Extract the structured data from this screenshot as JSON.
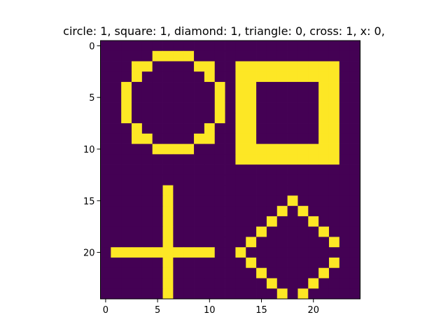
{
  "chart_data": {
    "type": "heatmap",
    "title": "circle: 1, square: 1, diamond: 1, triangle: 0, cross: 1, x: 0,",
    "xlabel": "",
    "ylabel": "",
    "grid": false,
    "xlim": [
      -0.5,
      24.5
    ],
    "ylim": [
      24.5,
      -0.5
    ],
    "x_ticks": [
      0,
      5,
      10,
      15,
      20
    ],
    "y_ticks": [
      0,
      5,
      10,
      15,
      20
    ],
    "x_tick_labels": [
      "0",
      "5",
      "10",
      "15",
      "20"
    ],
    "y_tick_labels": [
      "0",
      "5",
      "10",
      "15",
      "20"
    ],
    "colors": {
      "low": "#440154",
      "high": "#fde725"
    },
    "matrix": [
      [
        0,
        0,
        0,
        0,
        0,
        0,
        0,
        0,
        0,
        0,
        0,
        0,
        0,
        0,
        0,
        0,
        0,
        0,
        0,
        0,
        0,
        0,
        0,
        0,
        0
      ],
      [
        0,
        0,
        0,
        0,
        0,
        1,
        1,
        1,
        1,
        0,
        0,
        0,
        0,
        0,
        0,
        0,
        0,
        0,
        0,
        0,
        0,
        0,
        0,
        0,
        0
      ],
      [
        0,
        0,
        0,
        1,
        1,
        0,
        0,
        0,
        0,
        1,
        1,
        0,
        0,
        1,
        1,
        1,
        1,
        1,
        1,
        1,
        1,
        1,
        1,
        0,
        0
      ],
      [
        0,
        0,
        0,
        1,
        0,
        0,
        0,
        0,
        0,
        0,
        1,
        0,
        0,
        1,
        1,
        1,
        1,
        1,
        1,
        1,
        1,
        1,
        1,
        0,
        0
      ],
      [
        0,
        0,
        1,
        0,
        0,
        0,
        0,
        0,
        0,
        0,
        0,
        1,
        0,
        1,
        1,
        0,
        0,
        0,
        0,
        0,
        0,
        1,
        1,
        0,
        0
      ],
      [
        0,
        0,
        1,
        0,
        0,
        0,
        0,
        0,
        0,
        0,
        0,
        1,
        0,
        1,
        1,
        0,
        0,
        0,
        0,
        0,
        0,
        1,
        1,
        0,
        0
      ],
      [
        0,
        0,
        1,
        0,
        0,
        0,
        0,
        0,
        0,
        0,
        0,
        1,
        0,
        1,
        1,
        0,
        0,
        0,
        0,
        0,
        0,
        1,
        1,
        0,
        0
      ],
      [
        0,
        0,
        1,
        0,
        0,
        0,
        0,
        0,
        0,
        0,
        0,
        1,
        0,
        1,
        1,
        0,
        0,
        0,
        0,
        0,
        0,
        1,
        1,
        0,
        0
      ],
      [
        0,
        0,
        0,
        1,
        0,
        0,
        0,
        0,
        0,
        0,
        1,
        0,
        0,
        1,
        1,
        0,
        0,
        0,
        0,
        0,
        0,
        1,
        1,
        0,
        0
      ],
      [
        0,
        0,
        0,
        1,
        1,
        0,
        0,
        0,
        0,
        1,
        1,
        0,
        0,
        1,
        1,
        0,
        0,
        0,
        0,
        0,
        0,
        1,
        1,
        0,
        0
      ],
      [
        0,
        0,
        0,
        0,
        0,
        1,
        1,
        1,
        1,
        0,
        0,
        0,
        0,
        1,
        1,
        1,
        1,
        1,
        1,
        1,
        1,
        1,
        1,
        0,
        0
      ],
      [
        0,
        0,
        0,
        0,
        0,
        0,
        0,
        0,
        0,
        0,
        0,
        0,
        0,
        1,
        1,
        1,
        1,
        1,
        1,
        1,
        1,
        1,
        1,
        0,
        0
      ],
      [
        0,
        0,
        0,
        0,
        0,
        0,
        0,
        0,
        0,
        0,
        0,
        0,
        0,
        0,
        0,
        0,
        0,
        0,
        0,
        0,
        0,
        0,
        0,
        0,
        0
      ],
      [
        0,
        0,
        0,
        0,
        0,
        0,
        0,
        0,
        0,
        0,
        0,
        0,
        0,
        0,
        0,
        0,
        0,
        0,
        0,
        0,
        0,
        0,
        0,
        0,
        0
      ],
      [
        0,
        0,
        0,
        0,
        0,
        0,
        1,
        0,
        0,
        0,
        0,
        0,
        0,
        0,
        0,
        0,
        0,
        0,
        0,
        0,
        0,
        0,
        0,
        0,
        0
      ],
      [
        0,
        0,
        0,
        0,
        0,
        0,
        1,
        0,
        0,
        0,
        0,
        0,
        0,
        0,
        0,
        0,
        0,
        0,
        1,
        0,
        0,
        0,
        0,
        0,
        0
      ],
      [
        0,
        0,
        0,
        0,
        0,
        0,
        1,
        0,
        0,
        0,
        0,
        0,
        0,
        0,
        0,
        0,
        0,
        1,
        0,
        1,
        0,
        0,
        0,
        0,
        0
      ],
      [
        0,
        0,
        0,
        0,
        0,
        0,
        1,
        0,
        0,
        0,
        0,
        0,
        0,
        0,
        0,
        0,
        1,
        0,
        0,
        0,
        1,
        0,
        0,
        0,
        0
      ],
      [
        0,
        0,
        0,
        0,
        0,
        0,
        1,
        0,
        0,
        0,
        0,
        0,
        0,
        0,
        0,
        1,
        0,
        0,
        0,
        0,
        0,
        1,
        0,
        0,
        0
      ],
      [
        0,
        0,
        0,
        0,
        0,
        0,
        1,
        0,
        0,
        0,
        0,
        0,
        0,
        0,
        1,
        0,
        0,
        0,
        0,
        0,
        0,
        0,
        1,
        0,
        0
      ],
      [
        0,
        1,
        1,
        1,
        1,
        1,
        1,
        1,
        1,
        1,
        1,
        0,
        0,
        1,
        0,
        0,
        0,
        0,
        0,
        0,
        0,
        0,
        0,
        0,
        0
      ],
      [
        0,
        0,
        0,
        0,
        0,
        0,
        1,
        0,
        0,
        0,
        0,
        0,
        0,
        0,
        1,
        0,
        0,
        0,
        0,
        0,
        0,
        0,
        1,
        0,
        0
      ],
      [
        0,
        0,
        0,
        0,
        0,
        0,
        1,
        0,
        0,
        0,
        0,
        0,
        0,
        0,
        0,
        1,
        0,
        0,
        0,
        0,
        0,
        1,
        0,
        0,
        0
      ],
      [
        0,
        0,
        0,
        0,
        0,
        0,
        1,
        0,
        0,
        0,
        0,
        0,
        0,
        0,
        0,
        0,
        1,
        0,
        0,
        0,
        1,
        0,
        0,
        0,
        0
      ],
      [
        0,
        0,
        0,
        0,
        0,
        0,
        1,
        0,
        0,
        0,
        0,
        0,
        0,
        0,
        0,
        0,
        0,
        1,
        0,
        1,
        0,
        0,
        0,
        0,
        0
      ]
    ]
  }
}
